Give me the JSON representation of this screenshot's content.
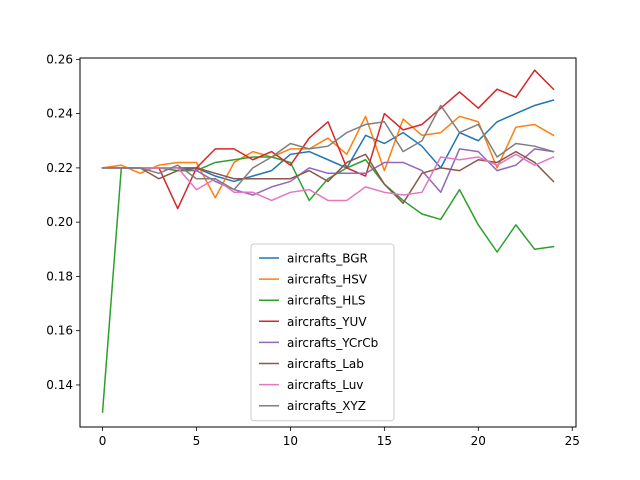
{
  "chart_data": {
    "type": "line",
    "title": "",
    "xlabel": "",
    "ylabel": "",
    "xlim": [
      -1.2,
      25.2
    ],
    "ylim": [
      0.1245,
      0.2605
    ],
    "xticks": [
      0,
      5,
      10,
      15,
      20,
      25
    ],
    "yticks": [
      0.14,
      0.16,
      0.18,
      0.2,
      0.22,
      0.24,
      0.26
    ],
    "ytick_labels": [
      "0.14",
      "0.16",
      "0.18",
      "0.20",
      "0.22",
      "0.24",
      "0.26"
    ],
    "grid": false,
    "legend": "center-bottom",
    "x": [
      0,
      1,
      2,
      3,
      4,
      5,
      6,
      7,
      8,
      9,
      10,
      11,
      12,
      13,
      14,
      15,
      16,
      17,
      18,
      19,
      20,
      21,
      22,
      23,
      24
    ],
    "series": [
      {
        "name": "aircrafts_BGR",
        "color": "#1f77b4",
        "values": [
          0.22,
          0.22,
          0.22,
          0.22,
          0.22,
          0.22,
          0.217,
          0.215,
          0.217,
          0.219,
          0.225,
          0.226,
          0.223,
          0.22,
          0.232,
          0.229,
          0.233,
          0.228,
          0.22,
          0.233,
          0.23,
          0.237,
          0.24,
          0.243,
          0.245
        ]
      },
      {
        "name": "aircrafts_HSV",
        "color": "#ff7f0e",
        "values": [
          0.22,
          0.221,
          0.218,
          0.221,
          0.222,
          0.222,
          0.209,
          0.222,
          0.226,
          0.224,
          0.227,
          0.227,
          0.231,
          0.225,
          0.239,
          0.219,
          0.238,
          0.232,
          0.233,
          0.239,
          0.237,
          0.22,
          0.235,
          0.236,
          0.232
        ]
      },
      {
        "name": "aircrafts_HLS",
        "color": "#2ca02c",
        "values": [
          0.13,
          0.22,
          0.22,
          0.22,
          0.219,
          0.219,
          0.222,
          0.223,
          0.224,
          0.224,
          0.222,
          0.208,
          0.216,
          0.22,
          0.223,
          0.214,
          0.208,
          0.203,
          0.201,
          0.212,
          0.199,
          0.189,
          0.199,
          0.19,
          0.191
        ]
      },
      {
        "name": "aircrafts_YUV",
        "color": "#d62728",
        "values": [
          0.22,
          0.22,
          0.22,
          0.22,
          0.205,
          0.22,
          0.227,
          0.227,
          0.223,
          0.226,
          0.221,
          0.231,
          0.237,
          0.22,
          0.217,
          0.24,
          0.234,
          0.236,
          0.242,
          0.248,
          0.242,
          0.249,
          0.246,
          0.256,
          0.249
        ]
      },
      {
        "name": "aircrafts_YCrCb",
        "color": "#9467bd",
        "values": [
          0.22,
          0.22,
          0.22,
          0.22,
          0.22,
          0.219,
          0.215,
          0.212,
          0.21,
          0.213,
          0.215,
          0.22,
          0.218,
          0.218,
          0.218,
          0.222,
          0.222,
          0.219,
          0.211,
          0.227,
          0.226,
          0.219,
          0.221,
          0.227,
          0.226
        ]
      },
      {
        "name": "aircrafts_Lab",
        "color": "#8c564b",
        "values": [
          0.22,
          0.22,
          0.22,
          0.216,
          0.219,
          0.22,
          0.218,
          0.216,
          0.216,
          0.216,
          0.216,
          0.219,
          0.215,
          0.222,
          0.225,
          0.214,
          0.207,
          0.218,
          0.22,
          0.219,
          0.223,
          0.222,
          0.226,
          0.222,
          0.215
        ]
      },
      {
        "name": "aircrafts_Luv",
        "color": "#e377c2",
        "values": [
          0.22,
          0.22,
          0.22,
          0.22,
          0.22,
          0.212,
          0.216,
          0.211,
          0.211,
          0.208,
          0.211,
          0.212,
          0.208,
          0.208,
          0.213,
          0.211,
          0.21,
          0.211,
          0.224,
          0.223,
          0.224,
          0.221,
          0.225,
          0.221,
          0.224
        ]
      },
      {
        "name": "aircrafts_XYZ",
        "color": "#7f7f7f",
        "values": [
          0.22,
          0.22,
          0.22,
          0.218,
          0.221,
          0.216,
          0.216,
          0.212,
          0.22,
          0.224,
          0.229,
          0.227,
          0.228,
          0.233,
          0.236,
          0.237,
          0.226,
          0.23,
          0.243,
          0.233,
          0.236,
          0.224,
          0.229,
          0.228,
          0.226
        ]
      }
    ]
  }
}
